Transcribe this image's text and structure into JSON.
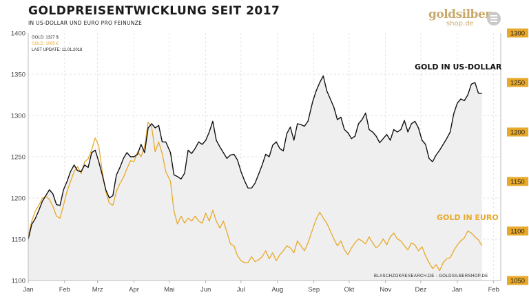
{
  "header": {
    "title": "GOLDPREISENTWICKLUNG  SEIT 2017",
    "subtitle": "IN US-DOLLAR UND EURO PRO FEINUNZE"
  },
  "logo": {
    "word1": "goldsilber",
    "word2": "shop.de"
  },
  "colors": {
    "usd": "#111111",
    "eur": "#e8a829",
    "area": "#efefef",
    "grid": "#d8d8d8",
    "right_axis_bg": "#e8a829",
    "logo": "#c8a96a"
  },
  "chart_data": {
    "type": "line",
    "title": "GOLDPREISENTWICKLUNG  SEIT 2017",
    "subtitle": "IN US-DOLLAR UND EURO PRO FEINUNZE",
    "x_ticks": [
      "Jan",
      "Feb",
      "Mrz",
      "Apr",
      "Mai",
      "Jun",
      "Jul",
      "Aug",
      "Sep",
      "Okt",
      "Nov",
      "Dez",
      "Jan",
      "Feb"
    ],
    "xlim": [
      "2017-01-01",
      "2018-02-07"
    ],
    "y_left": {
      "ticks": [
        1100,
        1150,
        1200,
        1250,
        1300,
        1350,
        1400
      ],
      "lim": [
        1100,
        1400
      ],
      "unit": "USD"
    },
    "y_right": {
      "ticks": [
        1050,
        1100,
        1150,
        1200,
        1250,
        1300
      ],
      "lim": [
        1050,
        1300
      ],
      "unit": "EUR"
    },
    "grid": true,
    "legend": {
      "placement": "top-left",
      "entries": [
        "GOLD: 1327 $",
        "GOLD: 1085 €",
        "LAST UPDATE: 11.01.2018"
      ]
    },
    "annotations": {
      "usd_label": "GOLD IN US-DOLLAR",
      "eur_label": "GOLD IN EURO",
      "source": "BLASCHZOKRESEARCH.DE  -  GOLDSILBERSHOP.DE"
    },
    "series": [
      {
        "name": "GOLD IN US-DOLLAR",
        "axis": "left",
        "area": true,
        "points": [
          [
            "2017-01-01",
            1150
          ],
          [
            "2017-01-04",
            1168
          ],
          [
            "2017-01-07",
            1175
          ],
          [
            "2017-01-10",
            1185
          ],
          [
            "2017-01-13",
            1196
          ],
          [
            "2017-01-16",
            1203
          ],
          [
            "2017-01-19",
            1210
          ],
          [
            "2017-01-22",
            1205
          ],
          [
            "2017-01-25",
            1192
          ],
          [
            "2017-01-28",
            1191
          ],
          [
            "2017-01-31",
            1210
          ],
          [
            "2017-02-03",
            1220
          ],
          [
            "2017-02-06",
            1232
          ],
          [
            "2017-02-09",
            1240
          ],
          [
            "2017-02-12",
            1233
          ],
          [
            "2017-02-15",
            1232
          ],
          [
            "2017-02-18",
            1240
          ],
          [
            "2017-02-21",
            1237
          ],
          [
            "2017-02-24",
            1255
          ],
          [
            "2017-02-27",
            1258
          ],
          [
            "2017-03-02",
            1244
          ],
          [
            "2017-03-05",
            1228
          ],
          [
            "2017-03-08",
            1210
          ],
          [
            "2017-03-11",
            1200
          ],
          [
            "2017-03-14",
            1203
          ],
          [
            "2017-03-17",
            1228
          ],
          [
            "2017-03-20",
            1237
          ],
          [
            "2017-03-23",
            1248
          ],
          [
            "2017-03-26",
            1255
          ],
          [
            "2017-03-29",
            1250
          ],
          [
            "2017-04-01",
            1250
          ],
          [
            "2017-04-04",
            1253
          ],
          [
            "2017-04-07",
            1265
          ],
          [
            "2017-04-10",
            1255
          ],
          [
            "2017-04-13",
            1285
          ],
          [
            "2017-04-16",
            1290
          ],
          [
            "2017-04-19",
            1285
          ],
          [
            "2017-04-22",
            1288
          ],
          [
            "2017-04-25",
            1268
          ],
          [
            "2017-04-28",
            1268
          ],
          [
            "2017-05-02",
            1255
          ],
          [
            "2017-05-05",
            1228
          ],
          [
            "2017-05-08",
            1226
          ],
          [
            "2017-05-11",
            1223
          ],
          [
            "2017-05-14",
            1230
          ],
          [
            "2017-05-17",
            1258
          ],
          [
            "2017-05-20",
            1254
          ],
          [
            "2017-05-23",
            1260
          ],
          [
            "2017-05-26",
            1268
          ],
          [
            "2017-05-29",
            1265
          ],
          [
            "2017-06-01",
            1270
          ],
          [
            "2017-06-04",
            1280
          ],
          [
            "2017-06-07",
            1293
          ],
          [
            "2017-06-10",
            1270
          ],
          [
            "2017-06-13",
            1262
          ],
          [
            "2017-06-16",
            1255
          ],
          [
            "2017-06-19",
            1248
          ],
          [
            "2017-06-22",
            1252
          ],
          [
            "2017-06-25",
            1253
          ],
          [
            "2017-06-28",
            1246
          ],
          [
            "2017-07-01",
            1232
          ],
          [
            "2017-07-04",
            1221
          ],
          [
            "2017-07-07",
            1212
          ],
          [
            "2017-07-10",
            1212
          ],
          [
            "2017-07-13",
            1218
          ],
          [
            "2017-07-16",
            1229
          ],
          [
            "2017-07-19",
            1240
          ],
          [
            "2017-07-22",
            1253
          ],
          [
            "2017-07-25",
            1250
          ],
          [
            "2017-07-28",
            1264
          ],
          [
            "2017-07-31",
            1268
          ],
          [
            "2017-08-03",
            1260
          ],
          [
            "2017-08-06",
            1257
          ],
          [
            "2017-08-09",
            1278
          ],
          [
            "2017-08-12",
            1286
          ],
          [
            "2017-08-15",
            1270
          ],
          [
            "2017-08-18",
            1290
          ],
          [
            "2017-08-21",
            1289
          ],
          [
            "2017-08-24",
            1287
          ],
          [
            "2017-08-27",
            1293
          ],
          [
            "2017-08-31",
            1317
          ],
          [
            "2017-09-03",
            1330
          ],
          [
            "2017-09-06",
            1340
          ],
          [
            "2017-09-09",
            1348
          ],
          [
            "2017-09-12",
            1330
          ],
          [
            "2017-09-15",
            1320
          ],
          [
            "2017-09-18",
            1310
          ],
          [
            "2017-09-21",
            1295
          ],
          [
            "2017-09-24",
            1298
          ],
          [
            "2017-09-27",
            1283
          ],
          [
            "2017-09-30",
            1279
          ],
          [
            "2017-10-03",
            1272
          ],
          [
            "2017-10-06",
            1275
          ],
          [
            "2017-10-09",
            1290
          ],
          [
            "2017-10-12",
            1295
          ],
          [
            "2017-10-15",
            1303
          ],
          [
            "2017-10-18",
            1283
          ],
          [
            "2017-10-21",
            1280
          ],
          [
            "2017-10-24",
            1275
          ],
          [
            "2017-10-27",
            1267
          ],
          [
            "2017-10-30",
            1272
          ],
          [
            "2017-11-02",
            1277
          ],
          [
            "2017-11-05",
            1270
          ],
          [
            "2017-11-08",
            1283
          ],
          [
            "2017-11-11",
            1280
          ],
          [
            "2017-11-14",
            1283
          ],
          [
            "2017-11-17",
            1294
          ],
          [
            "2017-11-20",
            1280
          ],
          [
            "2017-11-23",
            1290
          ],
          [
            "2017-11-26",
            1293
          ],
          [
            "2017-11-29",
            1285
          ],
          [
            "2017-12-02",
            1270
          ],
          [
            "2017-12-05",
            1265
          ],
          [
            "2017-12-08",
            1248
          ],
          [
            "2017-12-11",
            1244
          ],
          [
            "2017-12-14",
            1252
          ],
          [
            "2017-12-17",
            1258
          ],
          [
            "2017-12-20",
            1265
          ],
          [
            "2017-12-23",
            1272
          ],
          [
            "2017-12-26",
            1280
          ],
          [
            "2017-12-29",
            1302
          ],
          [
            "2018-01-01",
            1315
          ],
          [
            "2018-01-04",
            1320
          ],
          [
            "2018-01-07",
            1318
          ],
          [
            "2018-01-10",
            1325
          ],
          [
            "2018-01-13",
            1338
          ],
          [
            "2018-01-16",
            1340
          ],
          [
            "2018-01-19",
            1327
          ],
          [
            "2018-01-22",
            1327
          ]
        ]
      },
      {
        "name": "GOLD IN EURO",
        "axis": "right",
        "area": false,
        "points": [
          [
            "2017-01-01",
            1095
          ],
          [
            "2017-01-04",
            1110
          ],
          [
            "2017-01-07",
            1120
          ],
          [
            "2017-01-10",
            1126
          ],
          [
            "2017-01-13",
            1133
          ],
          [
            "2017-01-16",
            1135
          ],
          [
            "2017-01-19",
            1132
          ],
          [
            "2017-01-22",
            1125
          ],
          [
            "2017-01-25",
            1115
          ],
          [
            "2017-01-28",
            1113
          ],
          [
            "2017-01-31",
            1126
          ],
          [
            "2017-02-03",
            1140
          ],
          [
            "2017-02-06",
            1150
          ],
          [
            "2017-02-09",
            1160
          ],
          [
            "2017-02-12",
            1165
          ],
          [
            "2017-02-15",
            1158
          ],
          [
            "2017-02-18",
            1170
          ],
          [
            "2017-02-21",
            1173
          ],
          [
            "2017-02-24",
            1182
          ],
          [
            "2017-02-27",
            1194
          ],
          [
            "2017-03-02",
            1186
          ],
          [
            "2017-03-05",
            1160
          ],
          [
            "2017-03-08",
            1140
          ],
          [
            "2017-03-11",
            1128
          ],
          [
            "2017-03-14",
            1126
          ],
          [
            "2017-03-17",
            1140
          ],
          [
            "2017-03-20",
            1148
          ],
          [
            "2017-03-23",
            1154
          ],
          [
            "2017-03-26",
            1163
          ],
          [
            "2017-03-29",
            1171
          ],
          [
            "2017-04-01",
            1170
          ],
          [
            "2017-04-04",
            1180
          ],
          [
            "2017-04-07",
            1175
          ],
          [
            "2017-04-10",
            1185
          ],
          [
            "2017-04-13",
            1210
          ],
          [
            "2017-04-16",
            1205
          ],
          [
            "2017-04-19",
            1180
          ],
          [
            "2017-04-22",
            1190
          ],
          [
            "2017-04-25",
            1178
          ],
          [
            "2017-04-28",
            1160
          ],
          [
            "2017-05-02",
            1150
          ],
          [
            "2017-05-05",
            1120
          ],
          [
            "2017-05-08",
            1107
          ],
          [
            "2017-05-11",
            1115
          ],
          [
            "2017-05-14",
            1108
          ],
          [
            "2017-05-17",
            1113
          ],
          [
            "2017-05-20",
            1110
          ],
          [
            "2017-05-23",
            1115
          ],
          [
            "2017-05-26",
            1110
          ],
          [
            "2017-05-29",
            1108
          ],
          [
            "2017-06-01",
            1118
          ],
          [
            "2017-06-04",
            1110
          ],
          [
            "2017-06-07",
            1121
          ],
          [
            "2017-06-10",
            1110
          ],
          [
            "2017-06-13",
            1103
          ],
          [
            "2017-06-16",
            1110
          ],
          [
            "2017-06-19",
            1099
          ],
          [
            "2017-06-22",
            1087
          ],
          [
            "2017-06-25",
            1085
          ],
          [
            "2017-06-28",
            1075
          ],
          [
            "2017-07-01",
            1070
          ],
          [
            "2017-07-04",
            1068
          ],
          [
            "2017-07-07",
            1068
          ],
          [
            "2017-07-10",
            1074
          ],
          [
            "2017-07-13",
            1069
          ],
          [
            "2017-07-16",
            1071
          ],
          [
            "2017-07-19",
            1074
          ],
          [
            "2017-07-22",
            1080
          ],
          [
            "2017-07-25",
            1072
          ],
          [
            "2017-07-28",
            1078
          ],
          [
            "2017-07-31",
            1070
          ],
          [
            "2017-08-03",
            1076
          ],
          [
            "2017-08-06",
            1080
          ],
          [
            "2017-08-09",
            1085
          ],
          [
            "2017-08-12",
            1083
          ],
          [
            "2017-08-15",
            1078
          ],
          [
            "2017-08-18",
            1090
          ],
          [
            "2017-08-21",
            1085
          ],
          [
            "2017-08-24",
            1080
          ],
          [
            "2017-08-27",
            1088
          ],
          [
            "2017-08-31",
            1102
          ],
          [
            "2017-09-03",
            1112
          ],
          [
            "2017-09-06",
            1119
          ],
          [
            "2017-09-09",
            1113
          ],
          [
            "2017-09-12",
            1108
          ],
          [
            "2017-09-15",
            1100
          ],
          [
            "2017-09-18",
            1092
          ],
          [
            "2017-09-21",
            1085
          ],
          [
            "2017-09-24",
            1090
          ],
          [
            "2017-09-27",
            1081
          ],
          [
            "2017-09-30",
            1076
          ],
          [
            "2017-10-03",
            1083
          ],
          [
            "2017-10-06",
            1088
          ],
          [
            "2017-10-09",
            1092
          ],
          [
            "2017-10-12",
            1090
          ],
          [
            "2017-10-15",
            1087
          ],
          [
            "2017-10-18",
            1094
          ],
          [
            "2017-10-21",
            1088
          ],
          [
            "2017-10-24",
            1083
          ],
          [
            "2017-10-27",
            1086
          ],
          [
            "2017-10-30",
            1092
          ],
          [
            "2017-11-02",
            1086
          ],
          [
            "2017-11-05",
            1094
          ],
          [
            "2017-11-08",
            1098
          ],
          [
            "2017-11-11",
            1092
          ],
          [
            "2017-11-14",
            1090
          ],
          [
            "2017-11-17",
            1085
          ],
          [
            "2017-11-20",
            1081
          ],
          [
            "2017-11-23",
            1088
          ],
          [
            "2017-11-26",
            1086
          ],
          [
            "2017-11-29",
            1080
          ],
          [
            "2017-12-02",
            1084
          ],
          [
            "2017-12-05",
            1075
          ],
          [
            "2017-12-08",
            1068
          ],
          [
            "2017-12-11",
            1062
          ],
          [
            "2017-12-14",
            1066
          ],
          [
            "2017-12-17",
            1060
          ],
          [
            "2017-12-20",
            1068
          ],
          [
            "2017-12-23",
            1072
          ],
          [
            "2017-12-26",
            1073
          ],
          [
            "2017-12-29",
            1080
          ],
          [
            "2018-01-01",
            1086
          ],
          [
            "2018-01-04",
            1090
          ],
          [
            "2018-01-07",
            1093
          ],
          [
            "2018-01-10",
            1100
          ],
          [
            "2018-01-13",
            1098
          ],
          [
            "2018-01-16",
            1094
          ],
          [
            "2018-01-19",
            1091
          ],
          [
            "2018-01-22",
            1085
          ]
        ]
      }
    ]
  }
}
